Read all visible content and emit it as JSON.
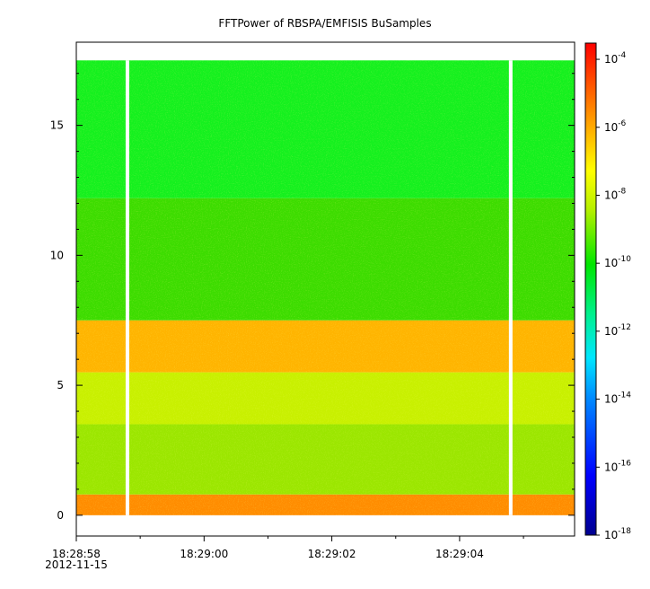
{
  "chart_data": {
    "type": "heatmap",
    "title": "FFTPower of RBSPA/EMFISIS  BuSamples",
    "xlabel": "",
    "ylabel": "",
    "x": {
      "start": "18:28:58",
      "end": "18:29:05.8",
      "date": "2012-11-15",
      "ticks": [
        {
          "value": "18:28:58",
          "label": "18:28:58"
        },
        {
          "value": "18:29:00",
          "label": "18:29:00"
        },
        {
          "value": "18:29:02",
          "label": "18:29:02"
        },
        {
          "value": "18:29:04",
          "label": "18:29:04"
        }
      ],
      "minor_ticks": [
        "18:28:59",
        "18:29:01",
        "18:29:03",
        "18:29:05"
      ]
    },
    "y": {
      "range": [
        -0.8,
        18.2
      ],
      "ticks": [
        0,
        5,
        10,
        15
      ],
      "data_extent": [
        0,
        17.5
      ]
    },
    "z": {
      "scale": "log",
      "range": [
        1e-18,
        0.0003
      ],
      "colormap": "rainbow (dark blue to red)",
      "ticks": [
        {
          "value": 0.0001,
          "base": "10",
          "exp": "-4"
        },
        {
          "value": 1e-06,
          "base": "10",
          "exp": "-6"
        },
        {
          "value": 1e-08,
          "base": "10",
          "exp": "-8"
        },
        {
          "value": 1e-10,
          "base": "10",
          "exp": "-10"
        },
        {
          "value": 1e-12,
          "base": "10",
          "exp": "-12"
        },
        {
          "value": 1e-14,
          "base": "10",
          "exp": "-14"
        },
        {
          "value": 1e-16,
          "base": "10",
          "exp": "-16"
        },
        {
          "value": 1e-18,
          "base": "10",
          "exp": "-18"
        }
      ]
    },
    "data_gaps": [
      "18:28:58.8",
      "18:29:04.8"
    ],
    "bands": [
      {
        "y_range": [
          0,
          0.8
        ],
        "log10_power": -8,
        "color": "#ff8c00"
      },
      {
        "y_range": [
          0.8,
          3.5
        ],
        "log10_power": -9.5,
        "color": "#9be600"
      },
      {
        "y_range": [
          3.5,
          5.5
        ],
        "log10_power": -9,
        "color": "#c8f000"
      },
      {
        "y_range": [
          5.5,
          7.5
        ],
        "log10_power": -8,
        "color": "#ffb400"
      },
      {
        "y_range": [
          7.5,
          12.2
        ],
        "log10_power": -10,
        "color": "#3cdc00"
      },
      {
        "y_range": [
          12.2,
          17.5
        ],
        "log10_power": -11,
        "color": "#14f01e"
      }
    ],
    "grid": false,
    "legend": "none"
  }
}
